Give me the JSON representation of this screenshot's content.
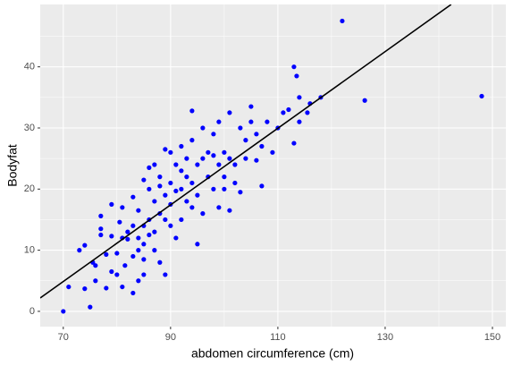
{
  "chart_data": {
    "type": "scatter",
    "x_label": "abdomen circumference (cm)",
    "y_label": "Bodyfat",
    "color": "#0000ff",
    "x": [
      70,
      71,
      73,
      74,
      74,
      75,
      75.5,
      76,
      76,
      77,
      77,
      77,
      78,
      78,
      79,
      79,
      79,
      80,
      80,
      80.5,
      81,
      81,
      81,
      81.5,
      82,
      82,
      83,
      83,
      83,
      83,
      84,
      84,
      84,
      84,
      85,
      85,
      85,
      85,
      85,
      86,
      86,
      86,
      86,
      87,
      87,
      87,
      87,
      88,
      88,
      88,
      88,
      89,
      89,
      89,
      89,
      90,
      90,
      90,
      90,
      91,
      91,
      91,
      92,
      92,
      92,
      92,
      93,
      93,
      93,
      94,
      94,
      94,
      94,
      95,
      95,
      95,
      96,
      96,
      96,
      97,
      97,
      98,
      98,
      98,
      99,
      99,
      99,
      100,
      100,
      100,
      101,
      101,
      101,
      102,
      102,
      103,
      103,
      104,
      104,
      105,
      105,
      106,
      106,
      107,
      107,
      108,
      109,
      110,
      111,
      112,
      113,
      113,
      113.5,
      114,
      114,
      115.5,
      116,
      118,
      122,
      126.2,
      148
    ],
    "values": [
      0,
      4,
      10,
      3.7,
      10.8,
      0.7,
      8,
      5,
      7.5,
      12.5,
      15.6,
      13.5,
      9.3,
      3.8,
      6.5,
      17.5,
      12.3,
      6,
      9.5,
      14.6,
      4,
      17,
      12,
      7.5,
      11.8,
      13,
      3,
      9,
      18.7,
      14,
      5,
      10,
      16.5,
      12,
      6,
      8.5,
      14,
      21.5,
      11,
      20,
      15,
      12.5,
      23.5,
      10,
      18,
      24,
      13,
      8,
      16,
      20.5,
      22,
      15,
      26.5,
      19,
      6,
      26,
      21,
      14,
      17.5,
      12,
      24,
      19.7,
      23,
      27,
      20,
      15,
      18,
      25,
      22,
      17,
      32.8,
      28,
      21,
      19,
      11,
      24,
      30,
      25,
      16,
      22,
      26,
      20,
      25.5,
      29,
      24,
      17,
      31,
      20,
      26,
      22,
      32.5,
      25,
      16.5,
      24,
      21,
      30,
      19.5,
      28,
      25,
      33.5,
      31,
      29,
      24.7,
      20.5,
      27,
      31,
      26,
      30,
      32.5,
      33,
      40,
      27.5,
      38.5,
      35,
      31,
      32.5,
      34,
      35,
      47.5,
      34.5,
      35.2
    ],
    "fit": {
      "color": "#000000",
      "x": [
        65.7,
        142.3
      ],
      "y": [
        2.18,
        50.2
      ]
    },
    "xlim": [
      65.7,
      152.5
    ],
    "ylim": [
      -2.5,
      50.2
    ],
    "xticks": [
      70,
      90,
      110,
      130,
      150
    ],
    "yticks": [
      0,
      10,
      20,
      30,
      40
    ],
    "xminorticks": [
      80,
      100,
      120,
      140
    ],
    "yminorticks": [
      5,
      15,
      25,
      35,
      45
    ],
    "grid": true
  }
}
